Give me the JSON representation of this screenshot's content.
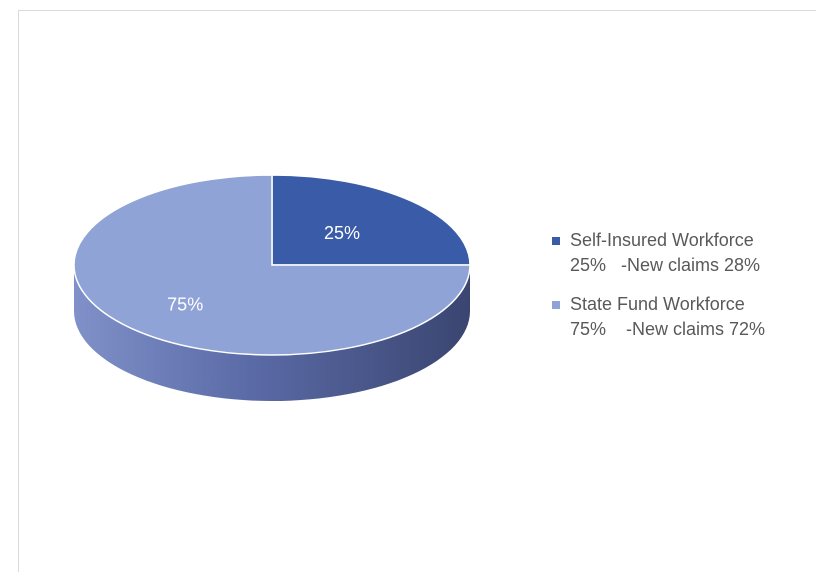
{
  "chart_data": {
    "type": "pie",
    "three_d": true,
    "title": "",
    "slices": [
      {
        "label_line1": "Self-Insured Workforce",
        "label_line2": "25%   -New claims 28%",
        "value": 25,
        "data_label": "25%",
        "color": "#3a5ba8"
      },
      {
        "label_line1": "State Fund Workforce",
        "label_line2": "75%    -New claims 72%",
        "value": 75,
        "data_label": "75%",
        "color": "#8fa3d6"
      }
    ],
    "legend_position": "right",
    "side_color_light": "#8090c8",
    "side_color_dark": "#3a4570"
  }
}
